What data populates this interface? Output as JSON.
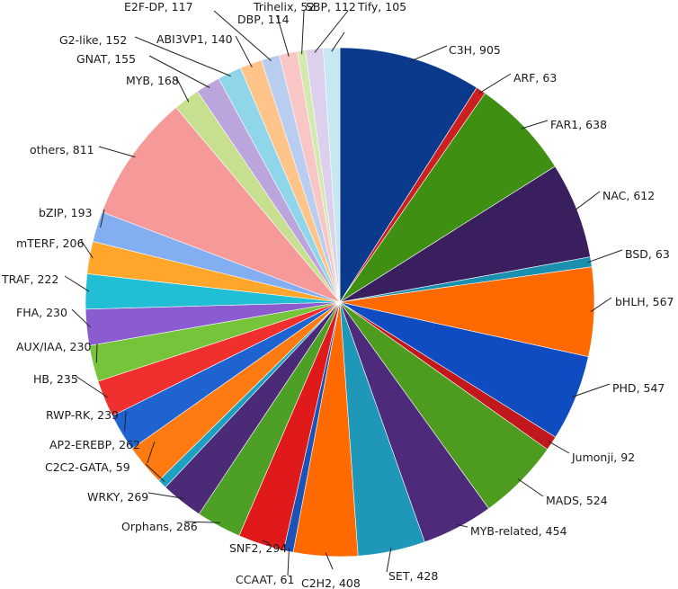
{
  "chart_data": {
    "type": "pie",
    "title": "",
    "start": "12 o'clock",
    "direction": "clockwise",
    "legend": "none (labels with leader lines)",
    "slices": [
      {
        "label": "C3H",
        "value": 905,
        "color": "#0b3a8c"
      },
      {
        "label": "ARF",
        "value": 63,
        "color": "#cc1f1f"
      },
      {
        "label": "FAR1",
        "value": 638,
        "color": "#3f8f12"
      },
      {
        "label": "NAC",
        "value": 612,
        "color": "#3a1f5e"
      },
      {
        "label": "BSD",
        "value": 63,
        "color": "#1a8fb0"
      },
      {
        "label": "bHLH",
        "value": 567,
        "color": "#ff6a00"
      },
      {
        "label": "PHD",
        "value": 547,
        "color": "#0f4cc2"
      },
      {
        "label": "Jumonji",
        "value": 92,
        "color": "#c0181c"
      },
      {
        "label": "MADS",
        "value": 524,
        "color": "#4d9b1f"
      },
      {
        "label": "MYB-related",
        "value": 454,
        "color": "#4e2a7a"
      },
      {
        "label": "SET",
        "value": 428,
        "color": "#1f97b8"
      },
      {
        "label": "C2H2",
        "value": 408,
        "color": "#ff6a00"
      },
      {
        "label": "CCAAT",
        "value": 61,
        "color": "#1a52b8"
      },
      {
        "label": "SNF2",
        "value": 294,
        "color": "#e01a1a"
      },
      {
        "label": "Orphans",
        "value": 286,
        "color": "#4e9f26"
      },
      {
        "label": "WRKY",
        "value": 269,
        "color": "#4b2a78"
      },
      {
        "label": "C2C2-GATA",
        "value": 59,
        "color": "#1ea0c2"
      },
      {
        "label": "AP2-EREBP",
        "value": 262,
        "color": "#ff7a10"
      },
      {
        "label": "RWP-RK",
        "value": 239,
        "color": "#1f63d0"
      },
      {
        "label": "HB",
        "value": 235,
        "color": "#f02f2f"
      },
      {
        "label": "AUX/IAA",
        "value": 230,
        "color": "#76c43a"
      },
      {
        "label": "FHA",
        "value": 230,
        "color": "#8a5ccf"
      },
      {
        "label": "TRAF",
        "value": 222,
        "color": "#22bed6"
      },
      {
        "label": "mTERF",
        "value": 206,
        "color": "#ffa62b"
      },
      {
        "label": "bZIP",
        "value": 193,
        "color": "#83aef2"
      },
      {
        "label": "others",
        "value": 811,
        "color": "#f59a98"
      },
      {
        "label": "MYB",
        "value": 168,
        "color": "#c6e08f"
      },
      {
        "label": "GNAT",
        "value": 155,
        "color": "#bba5dc"
      },
      {
        "label": "G2-like",
        "value": 152,
        "color": "#8fd6ea"
      },
      {
        "label": "ABI3VP1",
        "value": 140,
        "color": "#ffc48a"
      },
      {
        "label": "E2F-DP",
        "value": 117,
        "color": "#b9cdf1"
      },
      {
        "label": "DBP",
        "value": 114,
        "color": "#f9c6c6"
      },
      {
        "label": "Trihelix",
        "value": 52,
        "color": "#d3e9b0"
      },
      {
        "label": "SBP",
        "value": 112,
        "color": "#ddd0ee"
      },
      {
        "label": "Tify",
        "value": 105,
        "color": "#c5e8f2"
      }
    ]
  }
}
